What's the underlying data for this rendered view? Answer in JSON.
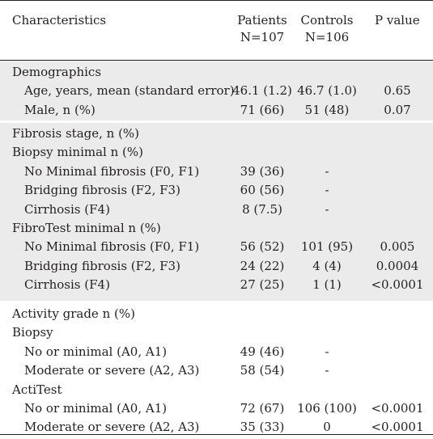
{
  "header": {
    "characteristics": "Characteristics",
    "patients": "Patients",
    "patients_n": "N=107",
    "controls": "Controls",
    "controls_n": "N=106",
    "pvalue": "P  value"
  },
  "demographics": {
    "title": "Demographics",
    "rows": [
      {
        "label": "Age, years, mean (standard error)",
        "patients": "46.1 (1.2)",
        "controls": "46.7 (1.0)",
        "p": "0.65"
      },
      {
        "label": "Male, n (%)",
        "patients": "71 (66)",
        "controls": "51 (48)",
        "p": "0.07"
      }
    ]
  },
  "fibrosis": {
    "title": "Fibrosis stage, n (%)",
    "biopsy_title": "Biopsy minimal n (%)",
    "biopsy_rows": [
      {
        "label": "No Minimal fibrosis (F0, F1)",
        "patients": "39 (36)",
        "controls": "-",
        "p": ""
      },
      {
        "label": "Bridging fibrosis (F2, F3)",
        "patients": "60 (56)",
        "controls": "-",
        "p": ""
      },
      {
        "label": "Cirrhosis (F4)",
        "patients": "8 (7.5)",
        "controls": "-",
        "p": ""
      }
    ],
    "fibrotest_title": "FibroTest minimal n (%)",
    "fibrotest_rows": [
      {
        "label": "No Minimal fibrosis (F0, F1)",
        "patients": "56 (52)",
        "controls": "101 (95)",
        "p": "0.005"
      },
      {
        "label": "Bridging fibrosis (F2, F3)",
        "patients": "24 (22)",
        "controls": "4 (4)",
        "p": "0.0004"
      },
      {
        "label": "Cirrhosis (F4)",
        "patients": "27 (25)",
        "controls": "1 (1)",
        "p": "<0.0001"
      }
    ]
  },
  "activity": {
    "title": "Activity grade n (%)",
    "biopsy_title": "Biopsy",
    "biopsy_rows": [
      {
        "label": "No or minimal (A0, A1)",
        "patients": "49 (46)",
        "controls": "-",
        "p": ""
      },
      {
        "label": "Moderate or severe (A2, A3)",
        "patients": "58 (54)",
        "controls": "-",
        "p": ""
      }
    ],
    "actitest_title": "ActiTest",
    "actitest_rows": [
      {
        "label": "No or minimal (A0, A1)",
        "patients": "72 (67)",
        "controls": "106 (100)",
        "p": "<0.0001"
      },
      {
        "label": "Moderate or severe (A2, A3)",
        "patients": "35 (33)",
        "controls": "0",
        "p": "<0.0001"
      }
    ]
  }
}
